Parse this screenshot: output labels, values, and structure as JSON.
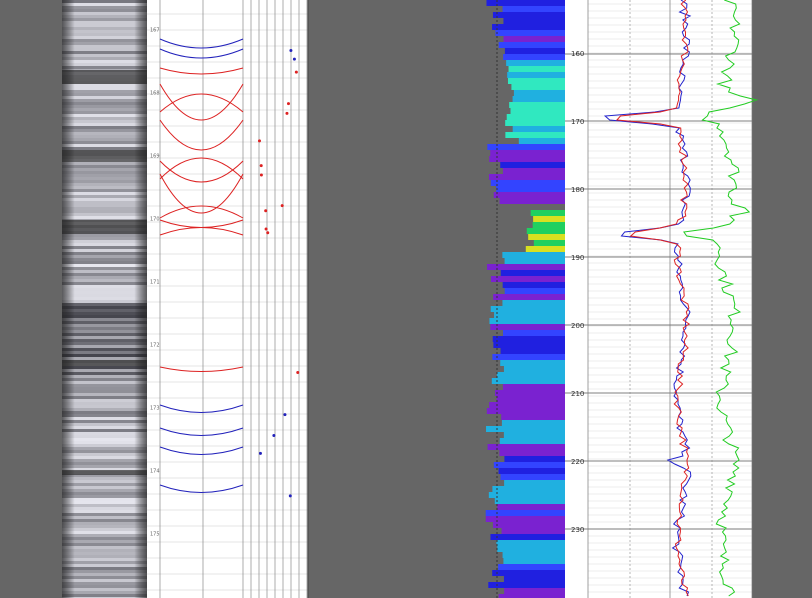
{
  "left_track": {
    "depth_labels": [
      "167",
      "168",
      "169",
      "170",
      "171",
      "172",
      "173",
      "174",
      "175"
    ]
  },
  "right_track": {
    "depth_labels": [
      "160",
      "170",
      "180",
      "190",
      "200",
      "210",
      "220",
      "230"
    ]
  }
}
